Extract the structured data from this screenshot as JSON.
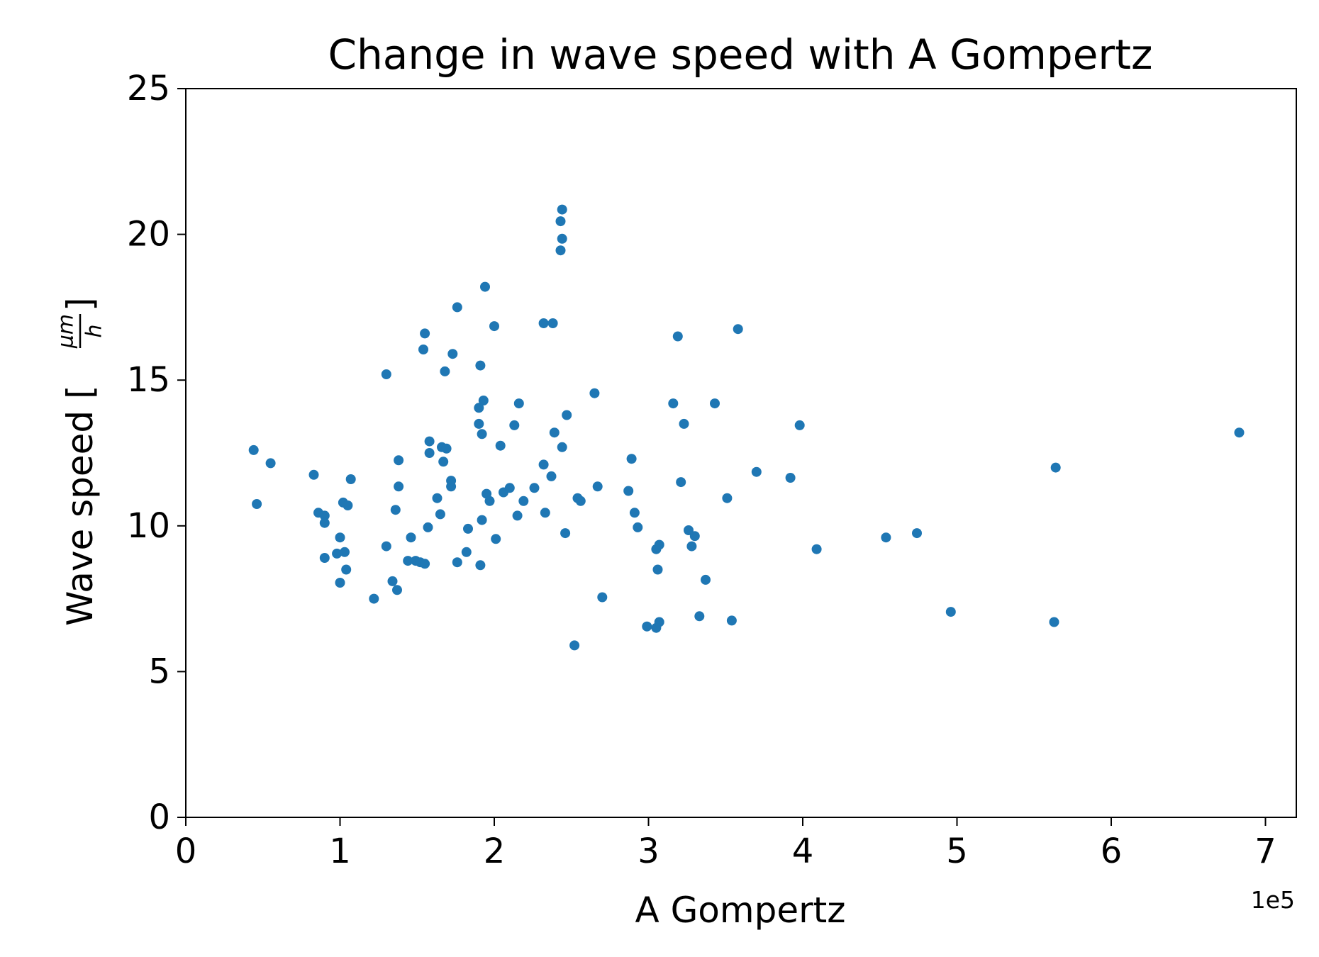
{
  "chart_data": {
    "type": "scatter",
    "title": "Change in wave speed with A Gompertz",
    "xlabel": "A Gompertz",
    "ylabel": "Wave speed [",
    "ylabel_unit_numerator": "μm",
    "ylabel_unit_denominator": "h",
    "ylabel_close": "]",
    "x_offset_label": "1e5",
    "xlim": [
      0,
      7.2
    ],
    "ylim": [
      0,
      25
    ],
    "x_ticks": [
      0,
      1,
      2,
      3,
      4,
      5,
      6,
      7
    ],
    "x_tick_labels": [
      "0",
      "1",
      "2",
      "3",
      "4",
      "5",
      "6",
      "7"
    ],
    "y_ticks": [
      0,
      5,
      10,
      15,
      20,
      25
    ],
    "y_tick_labels": [
      "0",
      "5",
      "10",
      "15",
      "20",
      "25"
    ],
    "grid": false,
    "legend": false,
    "marker_color": "#1f77b4",
    "series": [
      {
        "points": [
          [
            0.44,
            12.6
          ],
          [
            0.46,
            10.75
          ],
          [
            0.55,
            12.15
          ],
          [
            0.83,
            11.75
          ],
          [
            0.86,
            10.45
          ],
          [
            0.9,
            10.35
          ],
          [
            0.9,
            10.1
          ],
          [
            0.9,
            8.9
          ],
          [
            0.98,
            9.05
          ],
          [
            1.0,
            9.6
          ],
          [
            1.0,
            8.05
          ],
          [
            1.02,
            10.8
          ],
          [
            1.03,
            9.1
          ],
          [
            1.04,
            8.5
          ],
          [
            1.05,
            10.7
          ],
          [
            1.07,
            11.6
          ],
          [
            1.22,
            7.5
          ],
          [
            1.3,
            15.2
          ],
          [
            1.3,
            9.3
          ],
          [
            1.34,
            8.1
          ],
          [
            1.36,
            10.55
          ],
          [
            1.37,
            7.8
          ],
          [
            1.38,
            12.25
          ],
          [
            1.38,
            11.35
          ],
          [
            1.44,
            8.8
          ],
          [
            1.46,
            9.6
          ],
          [
            1.49,
            8.8
          ],
          [
            1.52,
            8.75
          ],
          [
            1.55,
            8.7
          ],
          [
            1.54,
            16.05
          ],
          [
            1.55,
            16.6
          ],
          [
            1.57,
            9.95
          ],
          [
            1.58,
            12.9
          ],
          [
            1.58,
            12.5
          ],
          [
            1.63,
            10.95
          ],
          [
            1.65,
            10.4
          ],
          [
            1.66,
            12.7
          ],
          [
            1.67,
            12.2
          ],
          [
            1.68,
            15.3
          ],
          [
            1.69,
            12.65
          ],
          [
            1.72,
            11.35
          ],
          [
            1.72,
            11.55
          ],
          [
            1.73,
            15.9
          ],
          [
            1.76,
            17.5
          ],
          [
            1.76,
            8.75
          ],
          [
            1.82,
            9.1
          ],
          [
            1.83,
            9.9
          ],
          [
            1.9,
            14.05
          ],
          [
            1.9,
            13.5
          ],
          [
            1.91,
            15.5
          ],
          [
            1.91,
            8.65
          ],
          [
            1.92,
            10.2
          ],
          [
            1.92,
            13.15
          ],
          [
            1.93,
            14.3
          ],
          [
            1.94,
            18.2
          ],
          [
            1.95,
            11.1
          ],
          [
            1.97,
            10.85
          ],
          [
            2.0,
            16.85
          ],
          [
            2.01,
            9.55
          ],
          [
            2.04,
            12.75
          ],
          [
            2.06,
            11.15
          ],
          [
            2.1,
            11.3
          ],
          [
            2.13,
            13.45
          ],
          [
            2.15,
            10.35
          ],
          [
            2.16,
            14.2
          ],
          [
            2.19,
            10.85
          ],
          [
            2.26,
            11.3
          ],
          [
            2.32,
            16.95
          ],
          [
            2.32,
            12.1
          ],
          [
            2.33,
            10.45
          ],
          [
            2.37,
            11.7
          ],
          [
            2.38,
            16.95
          ],
          [
            2.39,
            13.2
          ],
          [
            2.43,
            20.45
          ],
          [
            2.44,
            20.85
          ],
          [
            2.44,
            19.85
          ],
          [
            2.43,
            19.45
          ],
          [
            2.44,
            12.7
          ],
          [
            2.46,
            9.75
          ],
          [
            2.47,
            13.8
          ],
          [
            2.52,
            5.9
          ],
          [
            2.54,
            10.95
          ],
          [
            2.56,
            10.85
          ],
          [
            2.65,
            14.55
          ],
          [
            2.67,
            11.35
          ],
          [
            2.7,
            7.55
          ],
          [
            2.87,
            11.2
          ],
          [
            2.89,
            12.3
          ],
          [
            2.91,
            10.45
          ],
          [
            2.93,
            9.95
          ],
          [
            2.99,
            6.55
          ],
          [
            3.05,
            9.2
          ],
          [
            3.05,
            6.5
          ],
          [
            3.06,
            8.5
          ],
          [
            3.07,
            6.7
          ],
          [
            3.07,
            9.35
          ],
          [
            3.16,
            14.2
          ],
          [
            3.19,
            16.5
          ],
          [
            3.21,
            11.5
          ],
          [
            3.23,
            13.5
          ],
          [
            3.26,
            9.85
          ],
          [
            3.28,
            9.3
          ],
          [
            3.3,
            9.65
          ],
          [
            3.33,
            6.9
          ],
          [
            3.37,
            8.15
          ],
          [
            3.43,
            14.2
          ],
          [
            3.51,
            10.95
          ],
          [
            3.54,
            6.75
          ],
          [
            3.58,
            16.75
          ],
          [
            3.7,
            11.85
          ],
          [
            3.92,
            11.65
          ],
          [
            3.98,
            13.45
          ],
          [
            4.09,
            9.2
          ],
          [
            4.54,
            9.6
          ],
          [
            4.74,
            9.75
          ],
          [
            4.96,
            7.05
          ],
          [
            5.63,
            6.7
          ],
          [
            5.64,
            12.0
          ],
          [
            6.83,
            13.2
          ]
        ]
      }
    ]
  }
}
